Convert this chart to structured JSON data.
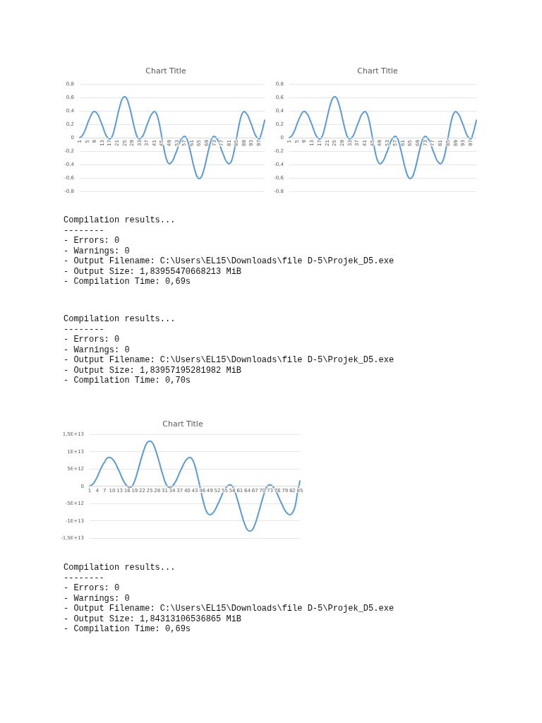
{
  "chart_data": [
    {
      "type": "line",
      "title": "Chart Title",
      "color": "#5b9bd5",
      "marker": "none",
      "line_style": "solid",
      "grid": "y",
      "categories": [
        "1",
        null,
        null,
        null,
        "5",
        null,
        null,
        null,
        "9",
        null,
        null,
        null,
        "13",
        null,
        null,
        null,
        "17",
        null,
        null,
        null,
        "21",
        null,
        null,
        null,
        "25",
        null,
        null,
        null,
        "29",
        null,
        null,
        null,
        "33",
        null,
        null,
        null,
        "37",
        null,
        null,
        null,
        "41",
        null,
        null,
        null,
        "45",
        null,
        null,
        null,
        "49",
        null,
        null,
        null,
        "53",
        null,
        null,
        null,
        "57",
        null,
        null,
        null,
        "61",
        null,
        null,
        null,
        "65",
        null,
        null,
        null,
        "69",
        null,
        null,
        null,
        "73",
        null,
        null,
        null,
        "77",
        null,
        null,
        null,
        "81",
        null,
        null,
        null,
        "85",
        null,
        null,
        null,
        "89",
        null,
        null,
        null,
        "93",
        null,
        null,
        null,
        "97",
        null,
        null,
        null
      ],
      "values": [
        0,
        0.02,
        0.06,
        0.12,
        0.2,
        0.27,
        0.33,
        0.38,
        0.39,
        0.37,
        0.33,
        0.26,
        0.19,
        0.11,
        0.04,
        0,
        -0.02,
        0,
        0.07,
        0.18,
        0.3,
        0.42,
        0.52,
        0.59,
        0.61,
        0.59,
        0.52,
        0.42,
        0.3,
        0.18,
        0.07,
        0,
        -0.02,
        0,
        0.04,
        0.11,
        0.19,
        0.26,
        0.33,
        0.37,
        0.39,
        0.36,
        0.28,
        0.15,
        0,
        -0.15,
        -0.28,
        -0.36,
        -0.39,
        -0.37,
        -0.33,
        -0.26,
        -0.19,
        -0.11,
        -0.04,
        0,
        0.02,
        0,
        -0.07,
        -0.18,
        -0.3,
        -0.42,
        -0.52,
        -0.59,
        -0.61,
        -0.59,
        -0.52,
        -0.42,
        -0.3,
        -0.18,
        -0.07,
        0,
        0.02,
        0,
        -0.04,
        -0.11,
        -0.19,
        -0.26,
        -0.33,
        -0.37,
        -0.39,
        -0.36,
        -0.28,
        -0.15,
        0,
        0.15,
        0.28,
        0.36,
        0.39,
        0.37,
        0.33,
        0.26,
        0.19,
        0.11,
        0.04,
        0,
        -0.02,
        0.04,
        0.14,
        0.26
      ],
      "ylim": [
        -0.8,
        0.8
      ],
      "yticks": [
        {
          "value": -0.8,
          "label": "-0,8"
        },
        {
          "value": -0.6,
          "label": "-0,6"
        },
        {
          "value": -0.4,
          "label": "-0,4"
        },
        {
          "value": -0.2,
          "label": "-0,2"
        },
        {
          "value": 0,
          "label": "0"
        },
        {
          "value": 0.2,
          "label": "0,2"
        },
        {
          "value": 0.4,
          "label": "0,4"
        },
        {
          "value": 0.6,
          "label": "0,6"
        },
        {
          "value": 0.8,
          "label": "0,8"
        }
      ]
    },
    {
      "type": "line",
      "title": "Chart Title",
      "color": "#5b9bd5",
      "marker": "none",
      "line_style": "solid",
      "grid": "y",
      "categories": [
        "1",
        null,
        null,
        null,
        "5",
        null,
        null,
        null,
        "9",
        null,
        null,
        null,
        "13",
        null,
        null,
        null,
        "17",
        null,
        null,
        null,
        "21",
        null,
        null,
        null,
        "25",
        null,
        null,
        null,
        "29",
        null,
        null,
        null,
        "33",
        null,
        null,
        null,
        "37",
        null,
        null,
        null,
        "41",
        null,
        null,
        null,
        "45",
        null,
        null,
        null,
        "49",
        null,
        null,
        null,
        "53",
        null,
        null,
        null,
        "57",
        null,
        null,
        null,
        "61",
        null,
        null,
        null,
        "65",
        null,
        null,
        null,
        "69",
        null,
        null,
        null,
        "73",
        null,
        null,
        null,
        "77",
        null,
        null,
        null,
        "81",
        null,
        null,
        null,
        "85",
        null,
        null,
        null,
        "89",
        null,
        null,
        null,
        "93",
        null,
        null,
        null,
        "97",
        null,
        null,
        null
      ],
      "values": [
        0,
        0.02,
        0.06,
        0.12,
        0.2,
        0.27,
        0.33,
        0.38,
        0.39,
        0.37,
        0.33,
        0.26,
        0.19,
        0.11,
        0.04,
        0,
        -0.02,
        0,
        0.07,
        0.18,
        0.3,
        0.42,
        0.52,
        0.59,
        0.61,
        0.59,
        0.52,
        0.42,
        0.3,
        0.18,
        0.07,
        0,
        -0.02,
        0,
        0.04,
        0.11,
        0.19,
        0.26,
        0.33,
        0.37,
        0.39,
        0.36,
        0.28,
        0.15,
        0,
        -0.15,
        -0.28,
        -0.36,
        -0.39,
        -0.37,
        -0.33,
        -0.26,
        -0.19,
        -0.11,
        -0.04,
        0,
        0.02,
        0,
        -0.07,
        -0.18,
        -0.3,
        -0.42,
        -0.52,
        -0.59,
        -0.61,
        -0.59,
        -0.52,
        -0.42,
        -0.3,
        -0.18,
        -0.07,
        0,
        0.02,
        0,
        -0.04,
        -0.11,
        -0.19,
        -0.26,
        -0.33,
        -0.37,
        -0.39,
        -0.36,
        -0.28,
        -0.15,
        0,
        0.15,
        0.28,
        0.36,
        0.39,
        0.37,
        0.33,
        0.26,
        0.19,
        0.11,
        0.04,
        0,
        -0.02,
        0.04,
        0.14,
        0.26
      ],
      "ylim": [
        -0.8,
        0.8
      ],
      "yticks": [
        {
          "value": -0.8,
          "label": "-0,8"
        },
        {
          "value": -0.6,
          "label": "-0,6"
        },
        {
          "value": -0.4,
          "label": "-0,4"
        },
        {
          "value": -0.2,
          "label": "-0,2"
        },
        {
          "value": 0,
          "label": "0"
        },
        {
          "value": 0.2,
          "label": "0,2"
        },
        {
          "value": 0.4,
          "label": "0,4"
        },
        {
          "value": 0.6,
          "label": "0,6"
        },
        {
          "value": 0.8,
          "label": "0,8"
        }
      ]
    },
    {
      "type": "other",
      "annotations": [
        "Compilation results...",
        "--------",
        "- Errors: 0",
        "- Warnings: 0",
        "- Output Filename: C:\\Users\\EL15\\Downloads\\file D-5\\Projek_D5.exe",
        "- Output Size: 1,83955470668213 MiB",
        "- Compilation Time: 0,69s"
      ]
    },
    {
      "type": "other",
      "annotations": [
        "Compilation results...",
        "--------",
        "- Errors: 0",
        "- Warnings: 0",
        "- Output Filename: C:\\Users\\EL15\\Downloads\\file D-5\\Projek_D5.exe",
        "- Output Size: 1,83957195281982 MiB",
        "- Compilation Time: 0,70s"
      ]
    },
    {
      "type": "line",
      "title": "Chart Title",
      "color": "#5b9bd5",
      "marker": "none",
      "line_style": "solid",
      "grid": "y",
      "categories": [
        "1",
        null,
        null,
        "4",
        null,
        null,
        "7",
        null,
        null,
        "10",
        null,
        null,
        "13",
        null,
        null,
        "16",
        null,
        null,
        "19",
        null,
        null,
        "22",
        null,
        null,
        "25",
        null,
        null,
        "28",
        null,
        null,
        "31",
        null,
        null,
        "34",
        null,
        null,
        "37",
        null,
        null,
        "40",
        null,
        null,
        "43",
        null,
        null,
        "46",
        null,
        null,
        "49",
        null,
        null,
        "52",
        null,
        null,
        "55",
        null,
        null,
        "58",
        null,
        null,
        "61",
        null,
        null,
        "64",
        null,
        null,
        "67",
        null,
        null,
        "70",
        null,
        null,
        "73",
        null,
        null,
        "76",
        null,
        null,
        "79",
        null,
        null,
        "82",
        null,
        null,
        "85"
      ],
      "values": [
        0,
        400000000000.0,
        1300000000000.0,
        2600000000000.0,
        4300000000000.0,
        5800000000000.0,
        7000000000000.0,
        8100000000000.0,
        8300000000000.0,
        7900000000000.0,
        7000000000000.0,
        5500000000000.0,
        4000000000000.0,
        2300000000000.0,
        900000000000.0,
        0,
        -400000000000.0,
        0,
        1500000000000.0,
        3800000000000.0,
        6400000000000.0,
        8900000000000.0,
        11100000000000.0,
        12600000000000.0,
        13000000000000.0,
        12600000000000.0,
        11100000000000.0,
        8900000000000.0,
        6400000000000.0,
        3800000000000.0,
        1500000000000.0,
        0,
        -400000000000.0,
        0,
        900000000000.0,
        2300000000000.0,
        4000000000000.0,
        5500000000000.0,
        7000000000000.0,
        7900000000000.0,
        8300000000000.0,
        7700000000000.0,
        6000000000000.0,
        3200000000000.0,
        0,
        -3200000000000.0,
        -6000000000000.0,
        -7700000000000.0,
        -8300000000000.0,
        -7900000000000.0,
        -7000000000000.0,
        -5500000000000.0,
        -4000000000000.0,
        -2300000000000.0,
        -900000000000.0,
        0,
        400000000000.0,
        0,
        -1500000000000.0,
        -3800000000000.0,
        -6400000000000.0,
        -8900000000000.0,
        -11100000000000.0,
        -12600000000000.0,
        -13000000000000.0,
        -12600000000000.0,
        -11100000000000.0,
        -8900000000000.0,
        -6400000000000.0,
        -3800000000000.0,
        -1500000000000.0,
        0,
        400000000000.0,
        0,
        -900000000000.0,
        -2300000000000.0,
        -4000000000000.0,
        -5500000000000.0,
        -7000000000000.0,
        -7900000000000.0,
        -8300000000000.0,
        -7700000000000.0,
        -6000000000000.0,
        -2000000000000.0,
        1500000000000.0
      ],
      "ylim": [
        -15000000000000.0,
        15000000000000.0
      ],
      "yticks": [
        {
          "value": -15000000000000.0,
          "label": "-1,5E+13"
        },
        {
          "value": -10000000000000.0,
          "label": "-1E+13"
        },
        {
          "value": -5000000000000.0,
          "label": "-5E+12"
        },
        {
          "value": 0,
          "label": "0"
        },
        {
          "value": 5000000000000.0,
          "label": "5E+12"
        },
        {
          "value": 10000000000000.0,
          "label": "1E+13"
        },
        {
          "value": 15000000000000.0,
          "label": "1,5E+13"
        }
      ]
    },
    {
      "type": "other",
      "annotations": [
        "Compilation results...",
        "--------",
        "- Errors: 0",
        "- Warnings: 0",
        "- Output Filename: C:\\Users\\EL15\\Downloads\\file D-5\\Projek_D5.exe",
        "- Output Size: 1,84313106536865 MiB",
        "- Compilation Time: 0,69s"
      ]
    }
  ]
}
